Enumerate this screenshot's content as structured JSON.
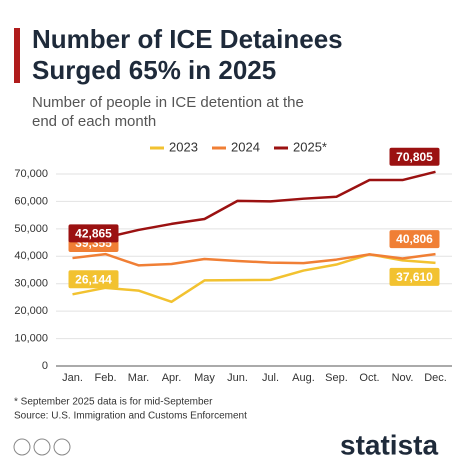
{
  "chart_data": {
    "type": "line",
    "title": "Number of ICE Detainees Surged 65% in 2025",
    "subtitle": "Number of people in ICE detention at the end of each month",
    "categories": [
      "Jan.",
      "Feb.",
      "Mar.",
      "Apr.",
      "May",
      "Jun.",
      "Jul.",
      "Aug.",
      "Sep.",
      "Oct.",
      "Nov.",
      "Dec."
    ],
    "series": [
      {
        "name": "2023",
        "color": "#f2c230",
        "values": [
          26144,
          28500,
          27500,
          23400,
          31200,
          31300,
          31400,
          34800,
          37000,
          40700,
          38500,
          37610
        ],
        "value_labels": [
          "26,144",
          null,
          null,
          null,
          null,
          null,
          null,
          null,
          null,
          null,
          null,
          "37,610"
        ]
      },
      {
        "name": "2024",
        "color": "#f07f35",
        "values": [
          39355,
          40800,
          36700,
          37200,
          39000,
          38300,
          37700,
          37500,
          38800,
          40700,
          39200,
          40806
        ],
        "value_labels": [
          "39,355",
          null,
          null,
          null,
          null,
          null,
          null,
          null,
          null,
          null,
          null,
          "40,806"
        ]
      },
      {
        "name": "2025*",
        "color": "#9b1111",
        "values": [
          42865,
          46800,
          49600,
          51800,
          53600,
          60200,
          60000,
          61000,
          61700,
          67800,
          67800,
          70805
        ],
        "value_labels": [
          "42,865",
          null,
          null,
          null,
          null,
          null,
          null,
          null,
          null,
          null,
          null,
          "70,805"
        ]
      }
    ],
    "ylim": [
      0,
      70000
    ],
    "yticks": [
      0,
      {
        "value": 10000,
        "label": "10,000"
      },
      {
        "value": 20000,
        "label": "20,000"
      },
      {
        "value": 30000,
        "label": "30,000"
      },
      {
        "value": 40000,
        "label": "40,000"
      },
      {
        "value": 50000,
        "label": "50,000"
      },
      {
        "value": 60000,
        "label": "60,000"
      },
      {
        "value": 70000,
        "label": "70,000"
      }
    ],
    "grid": true,
    "footnote": "* September 2025 data is for mid-September",
    "source": "Source: U.S. Immigration and Customs Enforcement",
    "brand": "statista"
  }
}
